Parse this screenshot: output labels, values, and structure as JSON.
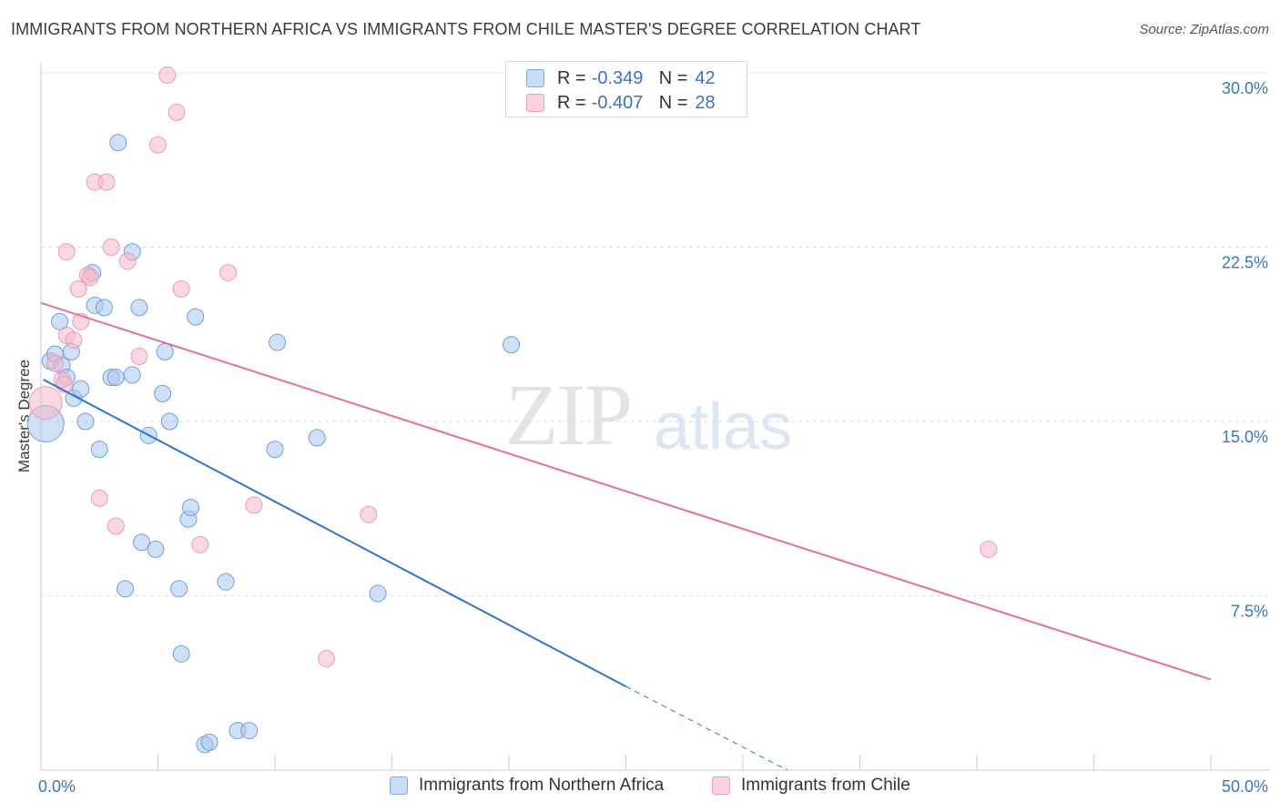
{
  "title": "IMMIGRANTS FROM NORTHERN AFRICA VS IMMIGRANTS FROM CHILE MASTER'S DEGREE CORRELATION CHART",
  "source": "Source: ZipAtlas.com",
  "watermark": {
    "zip": "ZIP",
    "atlas": "atlas"
  },
  "legend_top": [
    {
      "r_label": "R =",
      "r_value": "-0.349",
      "n_label": "N =",
      "n_value": "42",
      "color": "#a9c7ee"
    },
    {
      "r_label": "R =",
      "r_value": "-0.407",
      "n_label": "N =",
      "n_value": "28",
      "color": "#f5b8c9"
    }
  ],
  "legend_bottom": [
    {
      "label": "Immigrants from Northern Africa",
      "color": "#a9c7ee"
    },
    {
      "label": "Immigrants from Chile",
      "color": "#f5b8c9"
    }
  ],
  "chart_data": {
    "type": "scatter",
    "title": "IMMIGRANTS FROM NORTHERN AFRICA VS IMMIGRANTS FROM CHILE MASTER'S DEGREE CORRELATION CHART",
    "xlabel": "",
    "ylabel": "Master's Degree",
    "xlim": [
      0,
      50
    ],
    "ylim": [
      0,
      30
    ],
    "x_tick_labels": [
      {
        "value": 0,
        "label": "0.0%"
      },
      {
        "value": 50,
        "label": "50.0%"
      }
    ],
    "y_tick_labels": [
      {
        "value": 7.5,
        "label": "7.5%"
      },
      {
        "value": 15,
        "label": "15.0%"
      },
      {
        "value": 22.5,
        "label": "22.5%"
      },
      {
        "value": 30,
        "label": "30.0%"
      }
    ],
    "grid": true,
    "series": [
      {
        "name": "Immigrants from Northern Africa",
        "color": "#6f9fde",
        "fill": "#a9c7ee",
        "line_color": "#2e74cf",
        "points": [
          [
            0.2,
            14.9
          ],
          [
            0.4,
            17.6
          ],
          [
            0.6,
            17.9
          ],
          [
            0.8,
            19.3
          ],
          [
            0.9,
            17.4
          ],
          [
            1.1,
            16.9
          ],
          [
            1.4,
            16.0
          ],
          [
            1.7,
            16.4
          ],
          [
            1.9,
            15.0
          ],
          [
            2.3,
            20.0
          ],
          [
            2.2,
            21.4
          ],
          [
            2.7,
            19.9
          ],
          [
            2.5,
            13.8
          ],
          [
            3.0,
            16.9
          ],
          [
            3.3,
            27.0
          ],
          [
            3.9,
            17.0
          ],
          [
            3.9,
            22.3
          ],
          [
            3.6,
            7.8
          ],
          [
            4.2,
            19.9
          ],
          [
            4.3,
            9.8
          ],
          [
            4.6,
            14.4
          ],
          [
            4.9,
            9.5
          ],
          [
            5.2,
            16.2
          ],
          [
            5.3,
            18.0
          ],
          [
            5.5,
            15.0
          ],
          [
            5.9,
            7.8
          ],
          [
            6.0,
            5.0
          ],
          [
            6.3,
            10.8
          ],
          [
            6.4,
            11.3
          ],
          [
            6.6,
            19.5
          ],
          [
            7.0,
            1.1
          ],
          [
            7.2,
            1.2
          ],
          [
            7.9,
            8.1
          ],
          [
            8.4,
            1.7
          ],
          [
            8.9,
            1.7
          ],
          [
            10.0,
            13.8
          ],
          [
            10.1,
            18.4
          ],
          [
            11.8,
            14.3
          ],
          [
            14.4,
            7.6
          ],
          [
            20.1,
            18.3
          ],
          [
            3.2,
            16.9
          ],
          [
            1.3,
            18.0
          ]
        ],
        "trend": {
          "x1": 0.1,
          "y1": 16.8,
          "x2": 25.0,
          "y2": 3.6,
          "dash_to_x": 31.9,
          "dash_to_y": 0
        }
      },
      {
        "name": "Immigrants from Chile",
        "color": "#ec9bb3",
        "fill": "#f5b8c9",
        "line_color": "#e0719a",
        "points": [
          [
            0.2,
            15.8
          ],
          [
            0.6,
            17.5
          ],
          [
            0.9,
            16.8
          ],
          [
            1.0,
            16.6
          ],
          [
            1.1,
            18.7
          ],
          [
            1.1,
            22.3
          ],
          [
            1.4,
            18.5
          ],
          [
            1.6,
            20.7
          ],
          [
            1.7,
            19.3
          ],
          [
            2.0,
            21.3
          ],
          [
            2.1,
            21.2
          ],
          [
            2.3,
            25.3
          ],
          [
            2.5,
            11.7
          ],
          [
            2.8,
            25.3
          ],
          [
            3.0,
            22.5
          ],
          [
            3.2,
            10.5
          ],
          [
            3.7,
            21.9
          ],
          [
            4.2,
            17.8
          ],
          [
            5.0,
            26.9
          ],
          [
            5.4,
            29.9
          ],
          [
            5.8,
            28.3
          ],
          [
            6.0,
            20.7
          ],
          [
            6.8,
            9.7
          ],
          [
            8.0,
            21.4
          ],
          [
            9.1,
            11.4
          ],
          [
            12.2,
            4.8
          ],
          [
            14.0,
            11.0
          ],
          [
            40.5,
            9.5
          ]
        ],
        "trend": {
          "x1": 0,
          "y1": 20.1,
          "x2": 50,
          "y2": 3.9
        }
      }
    ]
  }
}
